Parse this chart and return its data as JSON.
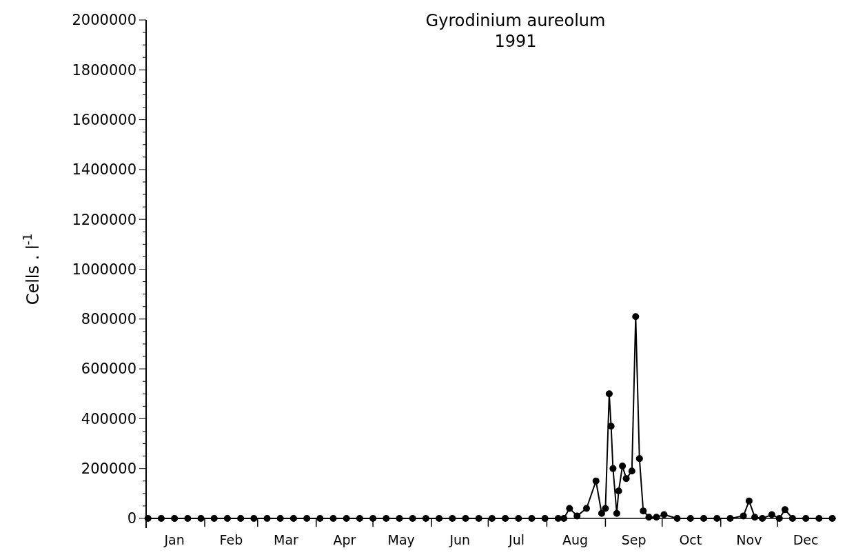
{
  "chart_data": {
    "type": "line",
    "title": "Gyrodinium aureolum",
    "subtitle": "1991",
    "ylabel": "Cells . l$^{-1}$",
    "x": [
      "1991-01-02",
      "1991-01-09",
      "1991-01-16",
      "1991-01-23",
      "1991-01-30",
      "1991-02-06",
      "1991-02-13",
      "1991-02-20",
      "1991-02-27",
      "1991-03-06",
      "1991-03-13",
      "1991-03-20",
      "1991-03-27",
      "1991-04-03",
      "1991-04-10",
      "1991-04-17",
      "1991-04-24",
      "1991-05-01",
      "1991-05-08",
      "1991-05-15",
      "1991-05-22",
      "1991-05-29",
      "1991-06-05",
      "1991-06-12",
      "1991-06-19",
      "1991-06-26",
      "1991-07-03",
      "1991-07-10",
      "1991-07-17",
      "1991-07-24",
      "1991-07-31",
      "1991-08-07",
      "1991-08-10",
      "1991-08-13",
      "1991-08-17",
      "1991-08-22",
      "1991-08-27",
      "1991-08-30",
      "1991-09-01",
      "1991-09-03",
      "1991-09-04",
      "1991-09-05",
      "1991-09-07",
      "1991-09-08",
      "1991-09-10",
      "1991-09-12",
      "1991-09-15",
      "1991-09-17",
      "1991-09-19",
      "1991-09-21",
      "1991-09-24",
      "1991-09-28",
      "1991-10-02",
      "1991-10-09",
      "1991-10-16",
      "1991-10-23",
      "1991-10-30",
      "1991-11-06",
      "1991-11-13",
      "1991-11-16",
      "1991-11-19",
      "1991-11-23",
      "1991-11-28",
      "1991-12-02",
      "1991-12-05",
      "1991-12-09",
      "1991-12-16",
      "1991-12-23",
      "1991-12-30"
    ],
    "series": [
      {
        "color": "#000000",
        "values": [
          0,
          0,
          0,
          0,
          0,
          0,
          0,
          0,
          0,
          0,
          0,
          0,
          0,
          0,
          0,
          0,
          0,
          0,
          0,
          0,
          0,
          0,
          0,
          0,
          0,
          0,
          0,
          0,
          0,
          0,
          0,
          0,
          0,
          40000,
          10000,
          40000,
          150000,
          20000,
          40000,
          500000,
          370000,
          200000,
          20000,
          110000,
          210000,
          160000,
          190000,
          810000,
          240000,
          30000,
          5000,
          5000,
          15000,
          0,
          0,
          0,
          0,
          0,
          10000,
          70000,
          5000,
          0,
          15000,
          0,
          35000,
          0,
          0,
          0,
          0
        ]
      }
    ],
    "xlim": [
      "1991-01-01",
      "1992-01-01"
    ],
    "xticks": [
      {
        "value": "1991-01-01",
        "label": null
      },
      {
        "value": "1991-01-16",
        "label": "Jan"
      },
      {
        "value": "1991-02-01",
        "label": null
      },
      {
        "value": "1991-02-15",
        "label": "Feb"
      },
      {
        "value": "1991-03-01",
        "label": null
      },
      {
        "value": "1991-03-16",
        "label": "Mar"
      },
      {
        "value": "1991-04-01",
        "label": null
      },
      {
        "value": "1991-04-16",
        "label": "Apr"
      },
      {
        "value": "1991-05-01",
        "label": null
      },
      {
        "value": "1991-05-16",
        "label": "May"
      },
      {
        "value": "1991-06-01",
        "label": null
      },
      {
        "value": "1991-06-16",
        "label": "Jun"
      },
      {
        "value": "1991-07-01",
        "label": null
      },
      {
        "value": "1991-07-16",
        "label": "Jul"
      },
      {
        "value": "1991-08-01",
        "label": null
      },
      {
        "value": "1991-08-16",
        "label": "Aug"
      },
      {
        "value": "1991-09-01",
        "label": null
      },
      {
        "value": "1991-09-16",
        "label": "Sep"
      },
      {
        "value": "1991-10-01",
        "label": null
      },
      {
        "value": "1991-10-16",
        "label": "Oct"
      },
      {
        "value": "1991-11-01",
        "label": null
      },
      {
        "value": "1991-11-16",
        "label": "Nov"
      },
      {
        "value": "1991-12-01",
        "label": null
      },
      {
        "value": "1991-12-16",
        "label": "Dec"
      }
    ],
    "ylim": [
      0,
      2000000
    ],
    "yticks": [
      0,
      200000,
      400000,
      600000,
      800000,
      1000000,
      1200000,
      1400000,
      1600000,
      1800000,
      2000000
    ],
    "grid": false,
    "marker": "circle",
    "line_style": "solid"
  }
}
